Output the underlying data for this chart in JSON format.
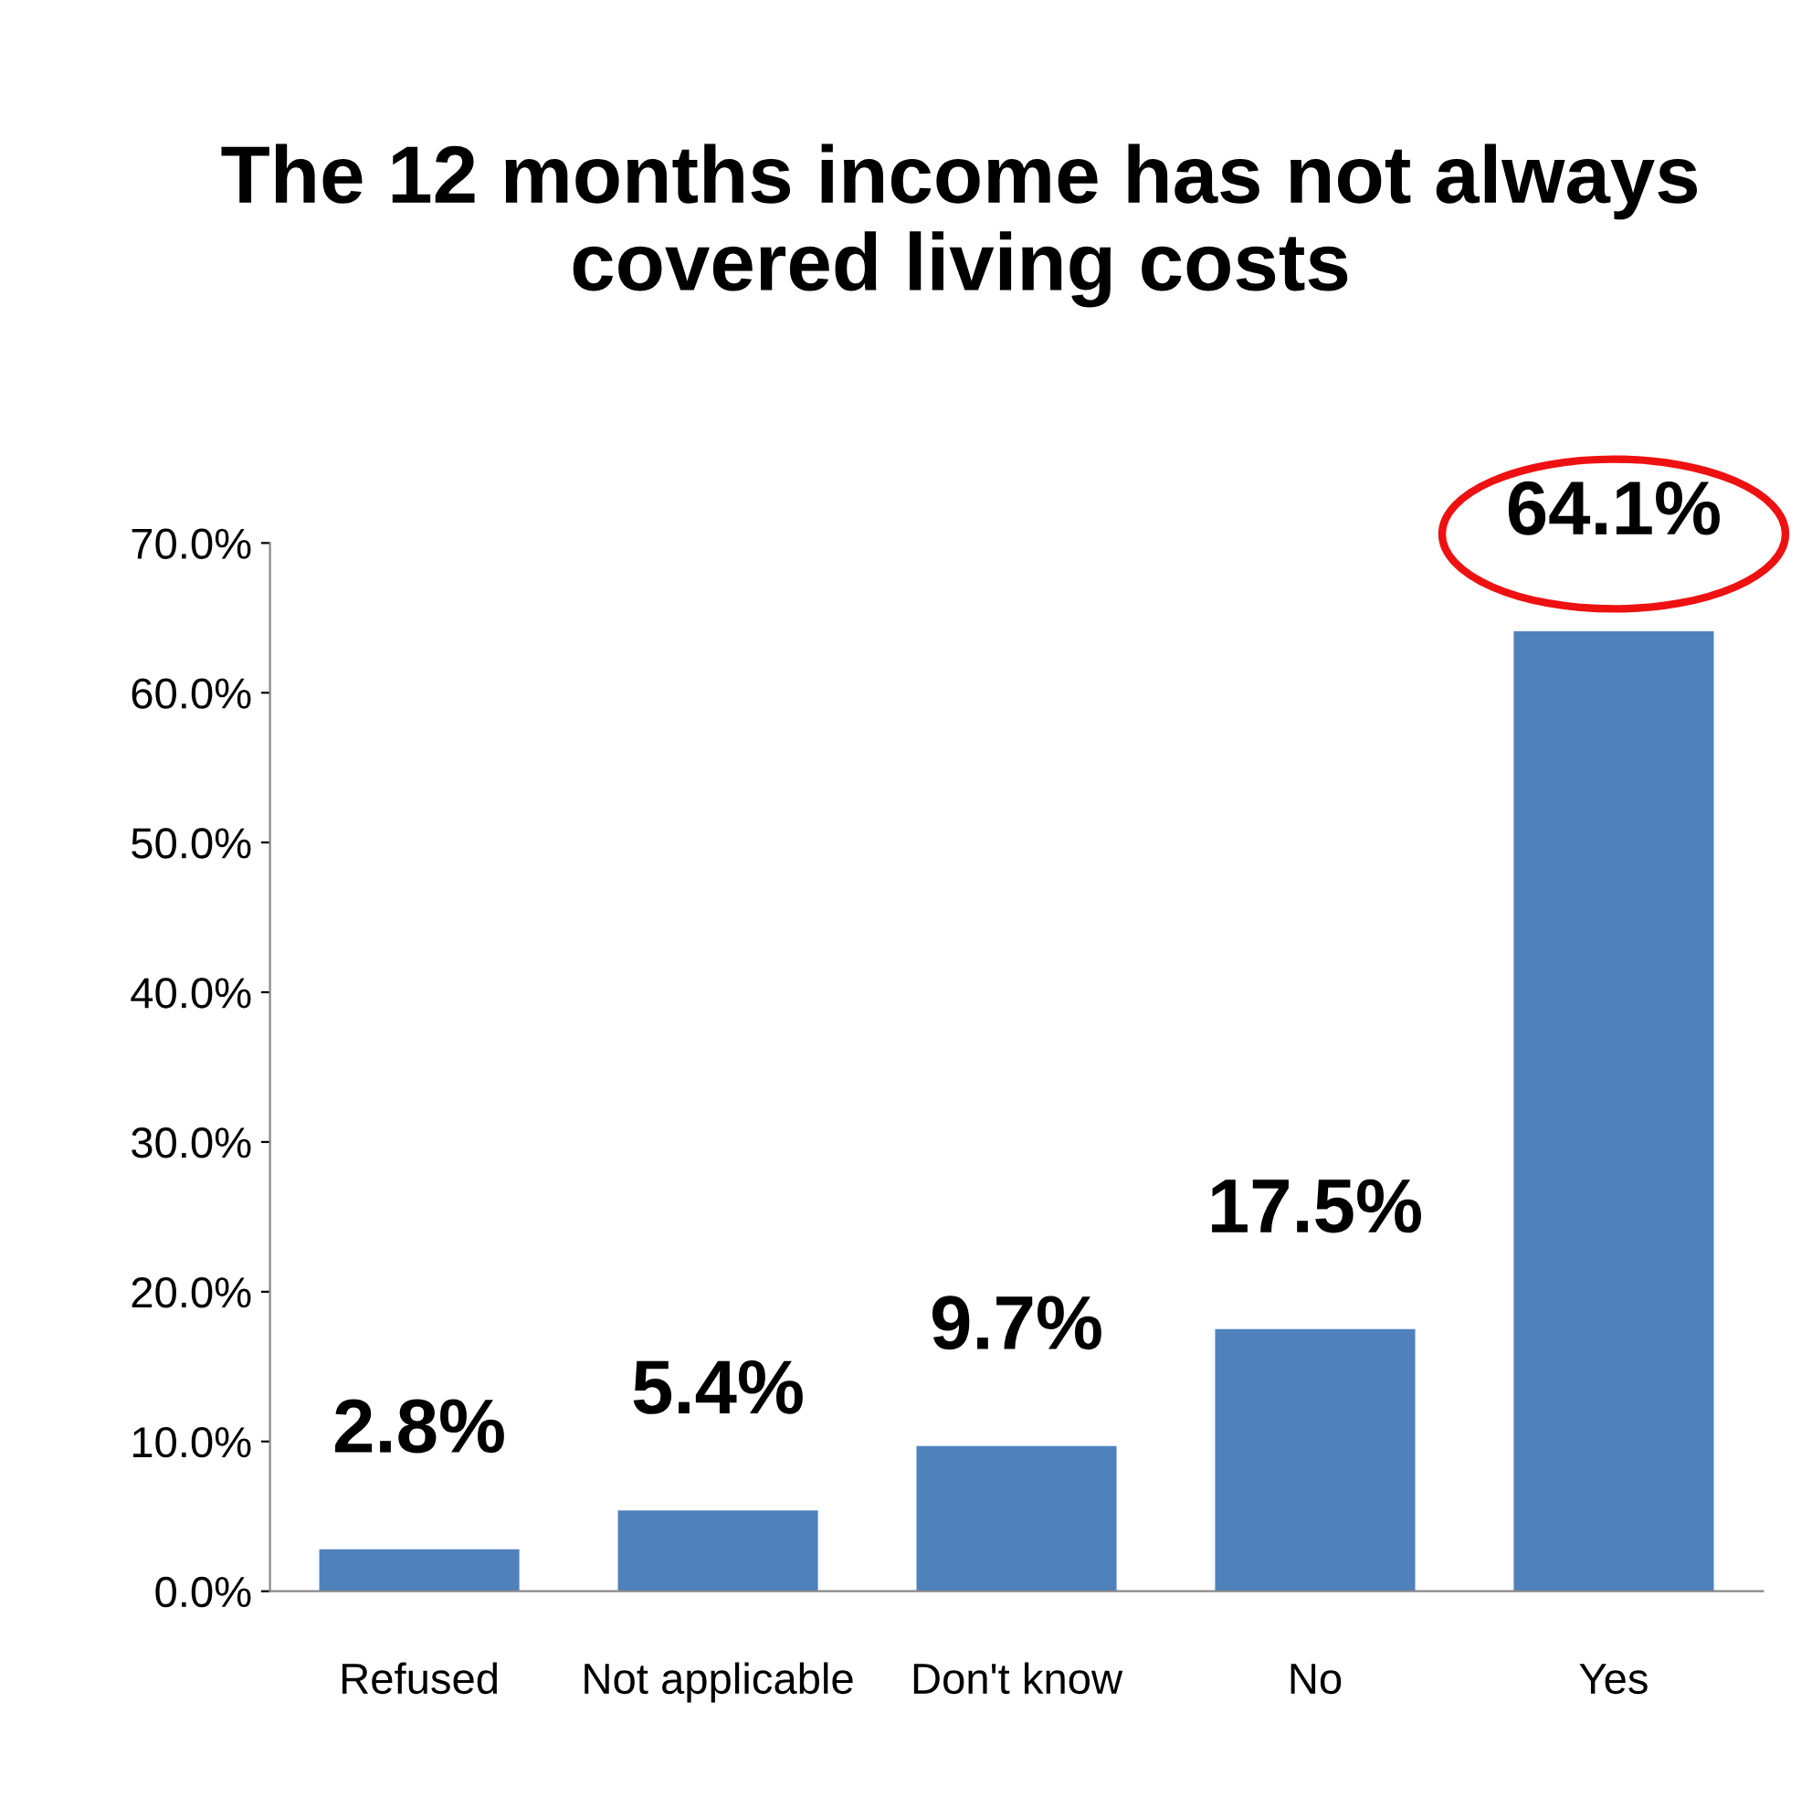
{
  "chart_data": {
    "type": "bar",
    "title": "The 12 months income has not always covered living costs",
    "categories": [
      "Refused",
      "Not applicable",
      "Don't know",
      "No",
      "Yes"
    ],
    "values": [
      2.8,
      5.4,
      9.7,
      17.5,
      64.1
    ],
    "value_labels": [
      "2.8%",
      "5.4%",
      "9.7%",
      "17.5%",
      "64.1%"
    ],
    "color": "#4f81bd",
    "ylim": [
      0,
      70
    ],
    "yticks": [
      {
        "value": 0,
        "label": "0.0%"
      },
      {
        "value": 10,
        "label": "10.0%"
      },
      {
        "value": 20,
        "label": "20.0%"
      },
      {
        "value": 30,
        "label": "30.0%"
      },
      {
        "value": 40,
        "label": "40.0%"
      },
      {
        "value": 50,
        "label": "50.0%"
      },
      {
        "value": 60,
        "label": "60.0%"
      },
      {
        "value": 70,
        "label": "70.0%"
      }
    ],
    "grid": false,
    "legend": false
  }
}
